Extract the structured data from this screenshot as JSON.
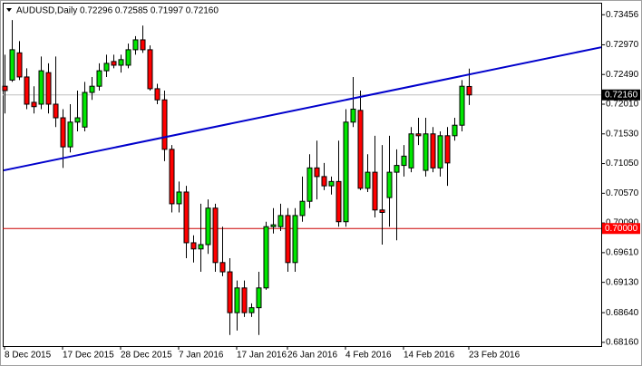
{
  "chart_data": {
    "type": "candlestick",
    "title": "AUDUSD,Daily  0.72296 0.72585 0.71997 0.72160",
    "categories": [
      "8 Dec 2015",
      null,
      null,
      null,
      null,
      null,
      null,
      null,
      "17 Dec 2015",
      null,
      null,
      null,
      null,
      null,
      null,
      null,
      "28 Dec 2015",
      null,
      null,
      null,
      null,
      null,
      null,
      null,
      "7 Jan 2016",
      null,
      null,
      null,
      null,
      null,
      null,
      null,
      "17 Jan 2016",
      null,
      null,
      null,
      null,
      null,
      null,
      "26 Jan 2016",
      null,
      null,
      null,
      null,
      null,
      null,
      null,
      "4 Feb 2016",
      null,
      null,
      null,
      null,
      null,
      null,
      null,
      "14 Feb 2016",
      null,
      null,
      null,
      null,
      null,
      null,
      null,
      null,
      "23 Feb 2016"
    ],
    "open": [
      0.723,
      0.724,
      0.7284,
      0.7245,
      0.7204,
      0.7201,
      0.7252,
      0.7201,
      0.7179,
      0.7132,
      0.7172,
      0.7164,
      0.722,
      0.723,
      0.7255,
      0.727,
      0.7264,
      0.7264,
      0.7289,
      0.7305,
      0.7289,
      0.7226,
      0.7208,
      0.7128,
      0.704,
      0.7059,
      0.6977,
      0.6967,
      0.6974,
      0.7033,
      0.6945,
      0.693,
      0.6864,
      0.6904,
      0.6864,
      0.6872,
      0.6904,
      0.7003,
      0.7003,
      0.7021,
      0.6945,
      0.7021,
      0.7044,
      0.7098,
      0.7084,
      0.7069,
      0.7076,
      0.7011,
      0.7172,
      0.7191,
      0.7065,
      0.7091,
      0.703,
      0.705,
      0.7091,
      0.7102,
      0.7098,
      0.7153,
      0.7094,
      0.7153,
      0.7098,
      0.715,
      0.715,
      0.7167,
      0.72296
    ],
    "high": [
      0.7281,
      0.7337,
      0.7303,
      0.7259,
      0.723,
      0.7278,
      0.7267,
      0.7278,
      0.7193,
      0.7201,
      0.7223,
      0.7237,
      0.7245,
      0.7267,
      0.7281,
      0.7281,
      0.7281,
      0.7299,
      0.7311,
      0.7328,
      0.7296,
      0.7234,
      0.7223,
      0.7135,
      0.7076,
      0.7069,
      0.6989,
      0.704,
      0.7047,
      0.704,
      0.7003,
      0.6952,
      0.6916,
      0.6916,
      0.6879,
      0.693,
      0.7011,
      0.7033,
      0.704,
      0.7033,
      0.7033,
      0.7084,
      0.712,
      0.7142,
      0.7106,
      0.7084,
      0.7142,
      0.7193,
      0.7245,
      0.7223,
      0.712,
      0.715,
      0.7135,
      0.715,
      0.7128,
      0.7135,
      0.7164,
      0.7179,
      0.7179,
      0.7164,
      0.7157,
      0.7164,
      0.7179,
      0.724,
      0.72585
    ],
    "low": [
      0.7186,
      0.7237,
      0.724,
      0.7193,
      0.7186,
      0.7193,
      0.7186,
      0.7164,
      0.7098,
      0.7123,
      0.7157,
      0.7157,
      0.7208,
      0.7223,
      0.7245,
      0.7259,
      0.7252,
      0.7259,
      0.7281,
      0.7284,
      0.7223,
      0.7201,
      0.7109,
      0.7026,
      0.7026,
      0.6952,
      0.6945,
      0.693,
      0.6959,
      0.693,
      0.6923,
      0.6828,
      0.6835,
      0.6857,
      0.6857,
      0.6828,
      0.6901,
      0.6992,
      0.6996,
      0.693,
      0.693,
      0.7011,
      0.7033,
      0.7047,
      0.7062,
      0.7055,
      0.7003,
      0.7003,
      0.7164,
      0.7062,
      0.7059,
      0.7018,
      0.6974,
      0.7003,
      0.6981,
      0.7084,
      0.7091,
      0.7135,
      0.7084,
      0.7091,
      0.7084,
      0.7069,
      0.7142,
      0.7157,
      0.71997
    ],
    "close": [
      0.7223,
      0.7289,
      0.7245,
      0.7201,
      0.7197,
      0.7255,
      0.7201,
      0.7179,
      0.7132,
      0.7172,
      0.7179,
      0.722,
      0.723,
      0.7255,
      0.7267,
      0.7264,
      0.7273,
      0.7289,
      0.7305,
      0.7289,
      0.7226,
      0.7208,
      0.7128,
      0.704,
      0.7059,
      0.6977,
      0.6967,
      0.6974,
      0.7033,
      0.6945,
      0.693,
      0.6864,
      0.6904,
      0.6864,
      0.6872,
      0.6904,
      0.7003,
      0.7006,
      0.7021,
      0.6945,
      0.7021,
      0.7044,
      0.7098,
      0.7084,
      0.7069,
      0.7076,
      0.7011,
      0.7172,
      0.7193,
      0.7065,
      0.7091,
      0.703,
      0.7026,
      0.7091,
      0.7102,
      0.7117,
      0.7153,
      0.715,
      0.7153,
      0.7098,
      0.715,
      0.7106,
      0.7167,
      0.723,
      0.7216
    ],
    "up_color": "#00e600",
    "down_color": "#ff0000",
    "ylim": [
      0.681,
      0.7365
    ],
    "yticks": [
      0.73456,
      {
        "value": 0.7297,
        "label": "0.72970"
      },
      {
        "value": 0.7249,
        "label": "0.72490"
      },
      {
        "value": 0.7201,
        "label": "0.72010"
      },
      {
        "value": 0.7153,
        "label": "0.71530"
      },
      {
        "value": 0.7105,
        "label": "0.71050"
      },
      {
        "value": 0.7057,
        "label": "0.70570"
      },
      {
        "value": 0.7009,
        "label": "0.70090"
      },
      {
        "value": 0.6961,
        "label": "0.69610"
      },
      {
        "value": 0.6913,
        "label": "0.69130"
      },
      {
        "value": 0.6864,
        "label": "0.68640"
      },
      {
        "value": 0.6816,
        "label": "0.68160"
      }
    ],
    "grid": false,
    "trend_line": {
      "values": [
        0.7094,
        0.7293
      ],
      "color": "#0000cc"
    },
    "hlines": [
      {
        "value": 0.7216,
        "label": "0.72160",
        "color": "#c0c0c0",
        "box_color": "#000000"
      },
      {
        "value": 0.7,
        "label": "0.70000",
        "color": "#cc0000",
        "box_color": "#ff0000"
      }
    ]
  }
}
